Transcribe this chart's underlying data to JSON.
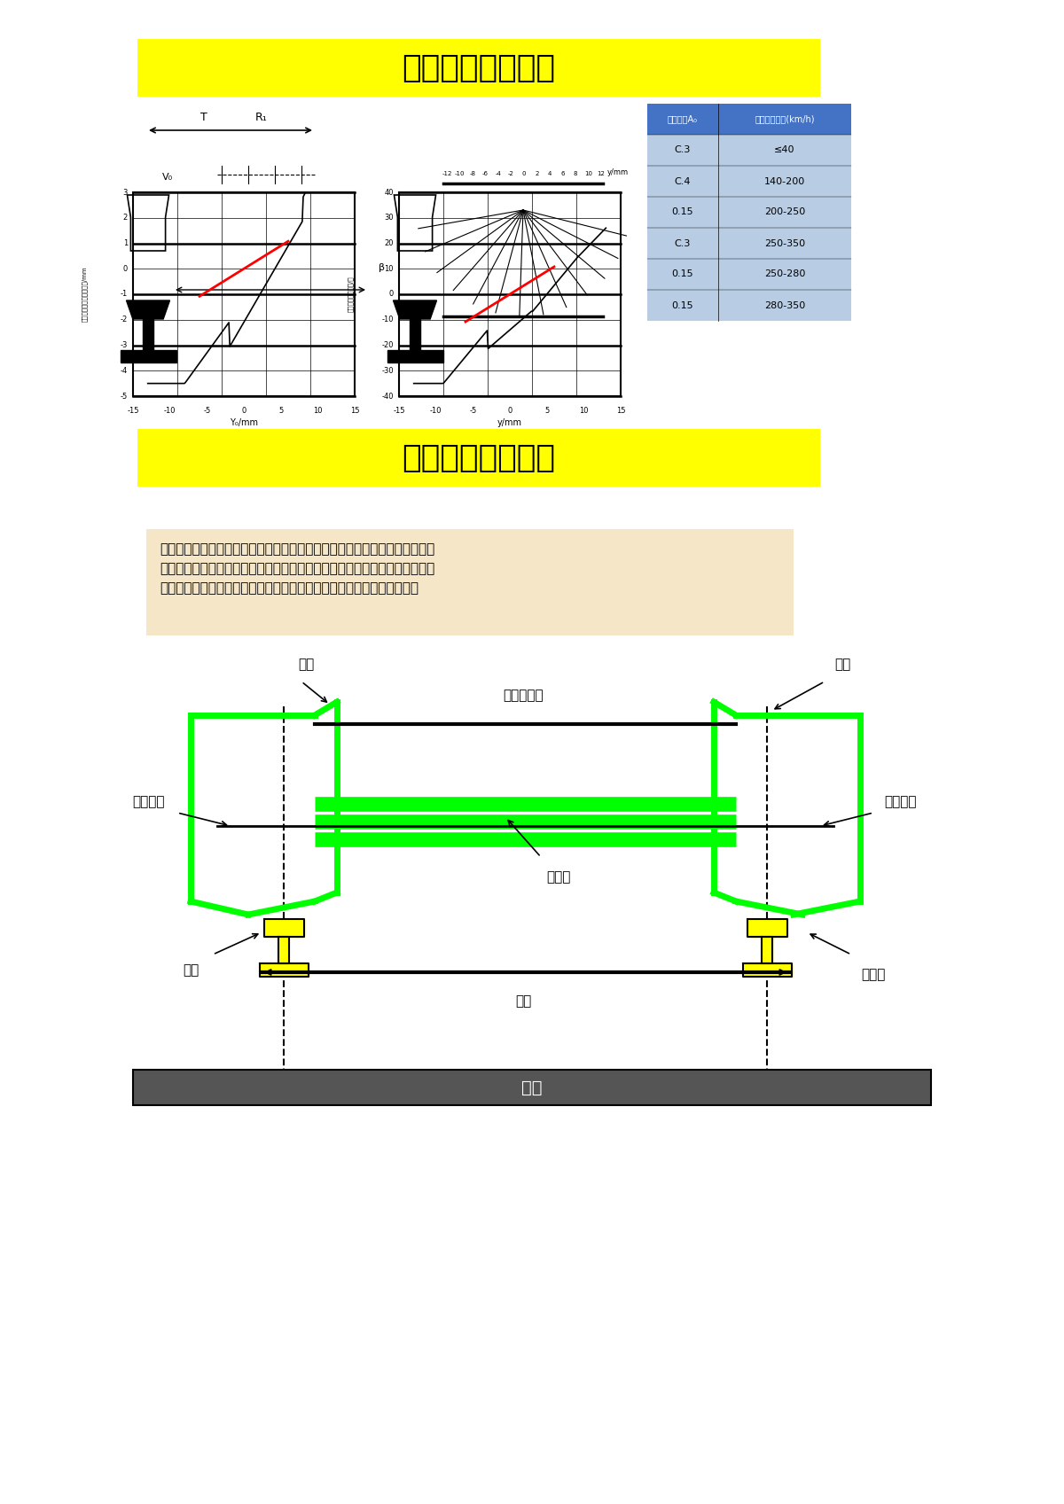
{
  "title1": "轮轨几何接触理论",
  "title2": "轮轨几何接触理论",
  "bg_color": "#FFFFFF",
  "yellow_bg": "#FFFF00",
  "title_fontsize": 28,
  "table_header_bg": "#4472C4",
  "table_row_bg": "#B8CCE4",
  "table_header_text": [
    "等效斜率A₀",
    "运行速度区间(km/h)"
  ],
  "table_rows": [
    [
      "C.3",
      "≤40"
    ],
    [
      "C.4",
      "140-200"
    ],
    [
      "0.15",
      "200-250"
    ],
    [
      "C.3",
      "250-350"
    ],
    [
      "0.15",
      "250-280"
    ],
    [
      "0.15",
      "280-350"
    ]
  ],
  "desc_text": "研究轮对与轨道在横截面上外形的几何匹配，不仅涉及车辆与轨轨系统的安全性，而且与车辆的动力学问题、轮轨相互作用问题、及接触应力及磨耗相关。是轮轨关系研究的基础性问题。可以采用刚性假定，也可考虑弹性变形。",
  "desc_bg": "#F5E6C8",
  "wheel_labels": {
    "lun_yuan": "轮缘",
    "ta_mian": "踏面",
    "left_gun": "左滚动圆",
    "right_gun": "右滚动圆",
    "lun_nei": "轮对内侧距",
    "gang_xing": "刚性轴",
    "gang_gui": "钢轨",
    "gui_ju": "轨距",
    "gui_di": "轨底坡",
    "gui_zhen": "轨枕"
  },
  "green_color": "#00FF00",
  "yellow_color": "#FFFF00",
  "black_color": "#000000",
  "dashed_color": "#000000"
}
